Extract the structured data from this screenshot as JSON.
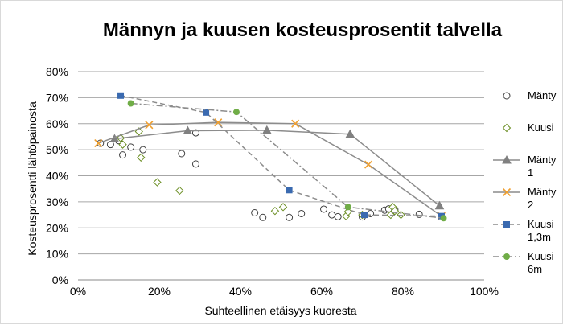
{
  "chart_data": {
    "type": "scatter",
    "title": "Männyn ja kuusen kosteusprosentit talvella",
    "xlabel": "Suhteellinen etäisyys kuoresta",
    "ylabel": "Kosteusprosentti lähtöpainosta",
    "xlim": [
      0,
      1
    ],
    "ylim": [
      0,
      0.8
    ],
    "x_ticks": [
      "0%",
      "20%",
      "40%",
      "60%",
      "80%",
      "100%"
    ],
    "y_ticks": [
      "0%",
      "10%",
      "20%",
      "30%",
      "40%",
      "50%",
      "60%",
      "70%",
      "80%"
    ],
    "grid": "horizontal",
    "legend_position": "right",
    "series": [
      {
        "name": "Mänty",
        "kind": "scatter",
        "marker": "circle-open",
        "color": "#404040",
        "points": [
          [
            0.055,
            0.525
          ],
          [
            0.08,
            0.52
          ],
          [
            0.1,
            0.535
          ],
          [
            0.11,
            0.48
          ],
          [
            0.13,
            0.51
          ],
          [
            0.16,
            0.5
          ],
          [
            0.255,
            0.485
          ],
          [
            0.29,
            0.565
          ],
          [
            0.29,
            0.445
          ],
          [
            0.435,
            0.258
          ],
          [
            0.455,
            0.24
          ],
          [
            0.52,
            0.24
          ],
          [
            0.55,
            0.255
          ],
          [
            0.605,
            0.272
          ],
          [
            0.625,
            0.25
          ],
          [
            0.64,
            0.243
          ],
          [
            0.7,
            0.242
          ],
          [
            0.72,
            0.255
          ],
          [
            0.755,
            0.268
          ],
          [
            0.765,
            0.273
          ],
          [
            0.78,
            0.27
          ],
          [
            0.84,
            0.252
          ]
        ]
      },
      {
        "name": "Kuusi",
        "kind": "scatter",
        "marker": "diamond-open",
        "color": "#6b8e23",
        "points": [
          [
            0.105,
            0.545
          ],
          [
            0.11,
            0.52
          ],
          [
            0.15,
            0.57
          ],
          [
            0.155,
            0.47
          ],
          [
            0.195,
            0.375
          ],
          [
            0.25,
            0.343
          ],
          [
            0.485,
            0.265
          ],
          [
            0.505,
            0.28
          ],
          [
            0.66,
            0.245
          ],
          [
            0.665,
            0.262
          ],
          [
            0.7,
            0.25
          ],
          [
            0.77,
            0.25
          ],
          [
            0.775,
            0.28
          ],
          [
            0.78,
            0.265
          ],
          [
            0.795,
            0.25
          ]
        ]
      },
      {
        "name": "Mänty 1",
        "kind": "line",
        "marker": "triangle",
        "color": "#808080",
        "points": [
          [
            0.09,
            0.542
          ],
          [
            0.27,
            0.573
          ],
          [
            0.465,
            0.575
          ],
          [
            0.67,
            0.56
          ],
          [
            0.89,
            0.285
          ]
        ]
      },
      {
        "name": "Mänty 2",
        "kind": "line",
        "marker": "x",
        "color": "#f0a030",
        "points": [
          [
            0.05,
            0.525
          ],
          [
            0.175,
            0.595
          ],
          [
            0.345,
            0.605
          ],
          [
            0.535,
            0.6
          ],
          [
            0.715,
            0.443
          ],
          [
            0.895,
            0.245
          ]
        ]
      },
      {
        "name": "Kuusi 1,3m",
        "kind": "line",
        "dash": "dashed",
        "marker": "square",
        "color": "#3a6ab0",
        "points": [
          [
            0.105,
            0.708
          ],
          [
            0.315,
            0.643
          ],
          [
            0.52,
            0.345
          ],
          [
            0.705,
            0.25
          ],
          [
            0.895,
            0.245
          ]
        ]
      },
      {
        "name": "Kuusi 6m",
        "kind": "line",
        "dash": "dashdot",
        "marker": "circle",
        "color": "#70ad47",
        "points": [
          [
            0.13,
            0.678
          ],
          [
            0.39,
            0.645
          ],
          [
            0.665,
            0.28
          ],
          [
            0.9,
            0.237
          ]
        ]
      }
    ]
  },
  "legend": {
    "items": [
      {
        "lines": [
          "Mänty"
        ]
      },
      {
        "lines": [
          "Kuusi"
        ]
      },
      {
        "lines": [
          "Mänty",
          "1"
        ]
      },
      {
        "lines": [
          "Mänty",
          "2"
        ]
      },
      {
        "lines": [
          "Kuusi",
          "1,3m"
        ]
      },
      {
        "lines": [
          "Kuusi",
          "6m"
        ]
      }
    ]
  }
}
